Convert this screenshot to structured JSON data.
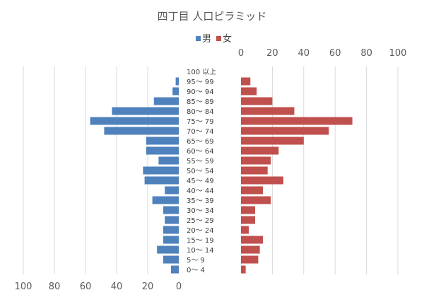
{
  "chart_data": {
    "type": "bar",
    "title": "四丁目 人口ピラミッド",
    "categories": [
      "100 以上",
      "95～ 99",
      "90～ 94",
      "85～ 89",
      "80～ 84",
      "75～ 79",
      "70～ 74",
      "65～ 69",
      "60～ 64",
      "55～ 59",
      "50～ 54",
      "45～ 49",
      "40～ 44",
      "35～ 39",
      "30～ 34",
      "25～ 29",
      "20～ 24",
      "15～ 19",
      "10～ 14",
      "5～ 9",
      "0～ 4"
    ],
    "series": [
      {
        "name": "男",
        "color": "#4f81bd",
        "values": [
          0,
          2,
          4,
          16,
          43,
          57,
          48,
          21,
          21,
          13,
          23,
          22,
          9,
          17,
          10,
          9,
          10,
          10,
          14,
          10,
          5
        ]
      },
      {
        "name": "女",
        "color": "#c0504d",
        "values": [
          0,
          6,
          10,
          20,
          34,
          71,
          56,
          40,
          24,
          19,
          17,
          27,
          14,
          19,
          9,
          9,
          5,
          14,
          12,
          11,
          3
        ]
      }
    ],
    "male_axis": {
      "ticks": [
        "100",
        "80",
        "60",
        "40",
        "20",
        "0"
      ],
      "min": 0,
      "max": 100
    },
    "female_axis": {
      "ticks": [
        "0",
        "20",
        "40",
        "60",
        "80",
        "100"
      ],
      "min": 0,
      "max": 100
    },
    "legend_position": "top",
    "grid": true
  }
}
